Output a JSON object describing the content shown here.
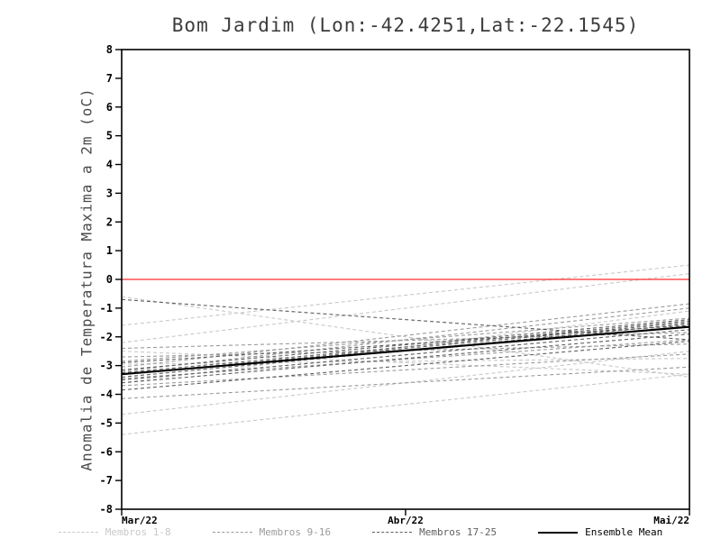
{
  "title": "Bom Jardim (Lon:-42.4251,Lat:-22.1545)",
  "ylabel": "Anomalia de Temperatura Maxima a 2m (oC)",
  "chart_data": {
    "type": "line",
    "title": "Bom Jardim (Lon:-42.4251,Lat:-22.1545)",
    "xlabel": "",
    "ylabel": "Anomalia de Temperatura Maxima a 2m (oC)",
    "x_tick_labels": [
      "Mar/22",
      "Abr/22",
      "Mai/22"
    ],
    "y_tick_labels": [
      "8",
      "7",
      "6",
      "5",
      "4",
      "3",
      "2",
      "1",
      "0",
      "-1",
      "-2",
      "-3",
      "-4",
      "-5",
      "-6",
      "-7",
      "-8"
    ],
    "ylim": [
      -8,
      8
    ],
    "grid": false,
    "zero_line": {
      "y": 0,
      "color": "#ff2a2a"
    },
    "frame_color": "#000000",
    "groups": [
      {
        "name": "Membros 1-8",
        "color": "#c8c8c8",
        "style": "dashed",
        "members": [
          [
            -0.6,
            -3.4
          ],
          [
            -1.6,
            0.5
          ],
          [
            -2.2,
            0.2
          ],
          [
            -5.4,
            -3.3
          ],
          [
            -4.7,
            -2.5
          ],
          [
            -2.95,
            -2.75
          ],
          [
            -3.6,
            -1.1
          ],
          [
            -2.5,
            -3.3
          ]
        ]
      },
      {
        "name": "Membros 9-16",
        "color": "#9b9b9b",
        "style": "dashed",
        "members": [
          [
            -3.2,
            -1.0
          ],
          [
            -3.45,
            -2.1
          ],
          [
            -2.85,
            -1.35
          ],
          [
            -3.7,
            -2.6
          ],
          [
            -2.4,
            -1.85
          ],
          [
            -4.15,
            -3.05
          ],
          [
            -3.05,
            -0.85
          ],
          [
            -2.7,
            -2.25
          ]
        ]
      },
      {
        "name": "Membros 17-25",
        "color": "#5f5f5f",
        "style": "dashed",
        "members": [
          [
            -3.3,
            -1.5
          ],
          [
            -3.5,
            -1.75
          ],
          [
            -3.15,
            -1.4
          ],
          [
            -3.6,
            -1.9
          ],
          [
            -2.9,
            -1.6
          ],
          [
            -3.85,
            -2.15
          ],
          [
            -0.7,
            -2.1
          ],
          [
            -3.4,
            -1.55
          ],
          [
            -3.25,
            -1.45
          ]
        ]
      }
    ],
    "mean": {
      "name": "Ensemble Mean",
      "color": "#000000",
      "style": "solid",
      "values": [
        -3.3,
        -1.65
      ]
    }
  },
  "legend": [
    {
      "label": "Membros 1-8",
      "color": "#c8c8c8",
      "dash": true
    },
    {
      "label": "Membros 9-16",
      "color": "#9b9b9b",
      "dash": true
    },
    {
      "label": "Membros 17-25",
      "color": "#5f5f5f",
      "dash": true
    },
    {
      "label": "Ensemble Mean",
      "color": "#000000",
      "dash": false
    }
  ]
}
